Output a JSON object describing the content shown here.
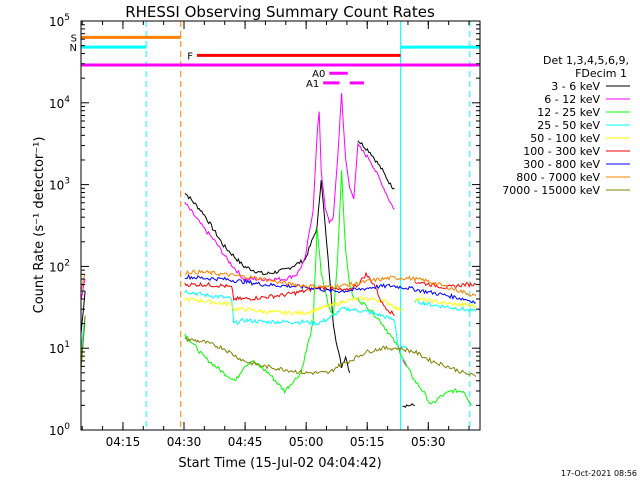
{
  "chart_data": {
    "type": "line",
    "title": "RHESSI Observing Summary Count Rates",
    "xlabel": "Start Time (15-Jul-02 04:04:42)",
    "ylabel": "Count Rate (s⁻¹ detector⁻¹)",
    "x_units": "minutes after 04:04:42",
    "x_range": [
      0,
      98
    ],
    "y_scale": "log",
    "y_range": [
      1,
      100000
    ],
    "y_ticks": [
      {
        "value": 1,
        "base": "10",
        "exp": "0"
      },
      {
        "value": 10,
        "base": "10",
        "exp": "1"
      },
      {
        "value": 100,
        "base": "10",
        "exp": "2"
      },
      {
        "value": 1000,
        "base": "10",
        "exp": "3"
      },
      {
        "value": 10000,
        "base": "10",
        "exp": "4"
      },
      {
        "value": 100000,
        "base": "10",
        "exp": "5"
      }
    ],
    "x_ticks": [
      {
        "t": 10.3,
        "label": "04:15"
      },
      {
        "t": 25.3,
        "label": "04:30"
      },
      {
        "t": 40.3,
        "label": "04:45"
      },
      {
        "t": 55.3,
        "label": "05:00"
      },
      {
        "t": 70.3,
        "label": "05:15"
      },
      {
        "t": 85.3,
        "label": "05:30"
      }
    ],
    "legend_header": [
      "Det 1,3,4,5,6,9,",
      "FDecim 1"
    ],
    "legend_position": "right",
    "series": [
      {
        "name": "3 - 6 keV",
        "color": "#000000",
        "points": [
          [
            0,
            15
          ],
          [
            1,
            50
          ],
          [
            24,
            null
          ],
          [
            25.5,
            800
          ],
          [
            30,
            450
          ],
          [
            35,
            180
          ],
          [
            40,
            100
          ],
          [
            45,
            80
          ],
          [
            50,
            90
          ],
          [
            55,
            120
          ],
          [
            58,
            300
          ],
          [
            59,
            1200
          ],
          [
            60,
            300
          ],
          [
            61,
            80
          ],
          [
            62,
            20
          ],
          [
            63,
            10
          ],
          [
            64,
            6
          ],
          [
            65,
            8
          ],
          [
            66,
            5
          ],
          [
            67,
            null
          ],
          [
            68,
            3500
          ],
          [
            71,
            2500
          ],
          [
            74,
            1500
          ],
          [
            76,
            1000
          ],
          [
            77,
            900
          ],
          [
            77.5,
            null
          ],
          [
            79,
            2
          ],
          [
            82,
            2
          ],
          [
            82.5,
            null
          ]
        ]
      },
      {
        "name": "6 - 12 keV",
        "color": "#ff00ff",
        "points": [
          [
            0,
            40
          ],
          [
            1,
            70
          ],
          [
            24,
            null
          ],
          [
            25.5,
            600
          ],
          [
            30,
            300
          ],
          [
            33,
            200
          ],
          [
            36,
            120
          ],
          [
            40,
            70
          ],
          [
            45,
            70
          ],
          [
            50,
            70
          ],
          [
            53,
            80
          ],
          [
            55,
            120
          ],
          [
            57,
            500
          ],
          [
            58,
            4000
          ],
          [
            58.5,
            8000
          ],
          [
            59,
            1500
          ],
          [
            60,
            500
          ],
          [
            61,
            350
          ],
          [
            62,
            400
          ],
          [
            63,
            2000
          ],
          [
            64,
            13000
          ],
          [
            65,
            2000
          ],
          [
            66,
            900
          ],
          [
            67,
            700
          ],
          [
            68,
            3000
          ],
          [
            71,
            2000
          ],
          [
            74,
            1000
          ],
          [
            76,
            600
          ],
          [
            77,
            500
          ],
          [
            77.5,
            null
          ],
          [
            79,
            7
          ],
          [
            80,
            6
          ],
          [
            80.5,
            null
          ]
        ]
      },
      {
        "name": "12 - 25 keV",
        "color": "#00ff00",
        "points": [
          [
            0,
            8
          ],
          [
            1,
            20
          ],
          [
            24,
            null
          ],
          [
            25.5,
            15
          ],
          [
            30,
            8
          ],
          [
            35,
            5
          ],
          [
            38,
            4
          ],
          [
            40,
            6
          ],
          [
            42,
            7
          ],
          [
            46,
            5
          ],
          [
            50,
            3
          ],
          [
            54,
            5
          ],
          [
            57,
            20
          ],
          [
            58,
            300
          ],
          [
            59,
            80
          ],
          [
            60,
            50
          ],
          [
            61,
            30
          ],
          [
            62,
            25
          ],
          [
            63,
            120
          ],
          [
            64,
            1500
          ],
          [
            65,
            150
          ],
          [
            66,
            60
          ],
          [
            67,
            40
          ],
          [
            68,
            40
          ],
          [
            71,
            30
          ],
          [
            74,
            20
          ],
          [
            77,
            12
          ],
          [
            78,
            10
          ],
          [
            80,
            6
          ],
          [
            82,
            4
          ],
          [
            84,
            3
          ],
          [
            86,
            2
          ],
          [
            88,
            2.5
          ],
          [
            91,
            3
          ],
          [
            94,
            3
          ],
          [
            96,
            2
          ]
        ]
      },
      {
        "name": "25 - 50 keV",
        "color": "#00ffff",
        "points": [
          [
            0,
            10
          ],
          [
            1,
            25
          ],
          [
            24,
            null
          ],
          [
            25.5,
            50
          ],
          [
            30,
            45
          ],
          [
            35,
            42
          ],
          [
            37,
            40
          ],
          [
            37.5,
            20
          ],
          [
            40,
            22
          ],
          [
            45,
            21
          ],
          [
            50,
            21
          ],
          [
            55,
            21
          ],
          [
            58,
            20
          ],
          [
            60,
            22
          ],
          [
            62,
            25
          ],
          [
            64,
            30
          ],
          [
            66,
            30
          ],
          [
            70,
            28
          ],
          [
            74,
            25
          ],
          [
            77,
            22
          ],
          [
            78,
            10
          ],
          [
            80,
            10
          ],
          [
            81,
            null
          ],
          [
            82,
            38
          ],
          [
            86,
            34
          ],
          [
            90,
            32
          ],
          [
            94,
            30
          ],
          [
            97,
            28
          ]
        ]
      },
      {
        "name": "50 - 100 keV",
        "color": "#ffff00",
        "points": [
          [
            25.5,
            40
          ],
          [
            30,
            38
          ],
          [
            35,
            35
          ],
          [
            37,
            35
          ],
          [
            37.5,
            30
          ],
          [
            40,
            30
          ],
          [
            45,
            28
          ],
          [
            50,
            27
          ],
          [
            55,
            27
          ],
          [
            58,
            30
          ],
          [
            60,
            32
          ],
          [
            63,
            35
          ],
          [
            65,
            38
          ],
          [
            68,
            40
          ],
          [
            71,
            40
          ],
          [
            74,
            38
          ],
          [
            76,
            35
          ],
          [
            77,
            32
          ],
          [
            78,
            30
          ],
          [
            79,
            30
          ],
          [
            81,
            null
          ],
          [
            82,
            40
          ],
          [
            86,
            38
          ],
          [
            90,
            35
          ],
          [
            94,
            34
          ],
          [
            97,
            33
          ]
        ]
      },
      {
        "name": "100 - 300 keV",
        "color": "#ff0000",
        "points": [
          [
            25.5,
            60
          ],
          [
            30,
            60
          ],
          [
            35,
            58
          ],
          [
            37,
            55
          ],
          [
            37.5,
            40
          ],
          [
            40,
            40
          ],
          [
            45,
            42
          ],
          [
            50,
            45
          ],
          [
            55,
            50
          ],
          [
            58,
            55
          ],
          [
            60,
            55
          ],
          [
            63,
            52
          ],
          [
            65,
            50
          ],
          [
            68,
            60
          ],
          [
            70,
            80
          ],
          [
            72,
            60
          ],
          [
            74,
            35
          ],
          [
            76,
            28
          ],
          [
            77,
            25
          ],
          [
            77.5,
            null
          ],
          [
            80,
            30
          ],
          [
            81,
            null
          ],
          [
            82,
            65
          ],
          [
            86,
            60
          ],
          [
            90,
            55
          ],
          [
            94,
            60
          ],
          [
            97,
            60
          ]
        ]
      },
      {
        "name": "300 - 800 keV",
        "color": "#0000ff",
        "points": [
          [
            25.5,
            75
          ],
          [
            30,
            72
          ],
          [
            35,
            70
          ],
          [
            40,
            65
          ],
          [
            45,
            60
          ],
          [
            50,
            58
          ],
          [
            55,
            56
          ],
          [
            58,
            54
          ],
          [
            61,
            50
          ],
          [
            64,
            50
          ],
          [
            68,
            52
          ],
          [
            72,
            56
          ],
          [
            76,
            58
          ],
          [
            80,
            55
          ],
          [
            84,
            50
          ],
          [
            88,
            46
          ],
          [
            92,
            42
          ],
          [
            96,
            38
          ],
          [
            97,
            36
          ]
        ]
      },
      {
        "name": "800 - 7000 keV",
        "color": "#ff8000",
        "points": [
          [
            0,
            50
          ],
          [
            1,
            80
          ],
          [
            24,
            null
          ],
          [
            25.5,
            85
          ],
          [
            30,
            85
          ],
          [
            35,
            80
          ],
          [
            40,
            75
          ],
          [
            45,
            70
          ],
          [
            50,
            62
          ],
          [
            55,
            58
          ],
          [
            60,
            56
          ],
          [
            64,
            58
          ],
          [
            68,
            62
          ],
          [
            72,
            68
          ],
          [
            76,
            72
          ],
          [
            80,
            72
          ],
          [
            84,
            68
          ],
          [
            88,
            60
          ],
          [
            92,
            52
          ],
          [
            96,
            45
          ],
          [
            97,
            44
          ]
        ]
      },
      {
        "name": "7000 - 15000 keV",
        "color": "#808000",
        "points": [
          [
            0,
            5
          ],
          [
            1,
            25
          ],
          [
            24,
            null
          ],
          [
            25.5,
            13
          ],
          [
            30,
            12
          ],
          [
            35,
            10
          ],
          [
            38,
            8
          ],
          [
            40,
            7
          ],
          [
            45,
            6
          ],
          [
            50,
            5.5
          ],
          [
            55,
            5
          ],
          [
            58,
            5
          ],
          [
            61,
            5
          ],
          [
            63,
            6
          ],
          [
            66,
            7
          ],
          [
            70,
            9
          ],
          [
            74,
            10
          ],
          [
            78,
            10
          ],
          [
            82,
            9
          ],
          [
            86,
            7
          ],
          [
            90,
            6
          ],
          [
            94,
            5
          ],
          [
            97,
            4.5
          ]
        ]
      }
    ],
    "markers": [
      {
        "label": "S",
        "color": "#ff8000",
        "t_start": 0,
        "t_end": 24.5,
        "y_value": 63000
      },
      {
        "label": "N",
        "color": "#00ffff",
        "t_start": 0,
        "t_end": 16,
        "y_value": 48000
      },
      {
        "label": "",
        "color": "#00ffff",
        "t_start": 78.5,
        "t_end": 98,
        "y_value": 48000
      },
      {
        "label": "F",
        "color": "#ff0000",
        "t_start": 28.5,
        "t_end": 78.5,
        "y_value": 38000
      },
      {
        "label": "",
        "color": "#ff00ff",
        "t_start": 0,
        "t_end": 98,
        "y_value": 29000
      },
      {
        "label": "A0",
        "color": "#ff00ff",
        "t_start": 61,
        "t_end": 65.5,
        "y_value": 23000
      },
      {
        "label": "A1",
        "color": "#ff00ff",
        "t_start": 59.5,
        "t_end": 63.5,
        "y_value": 17500
      },
      {
        "label": "",
        "color": "#ff00ff",
        "t_start": 66,
        "t_end": 69.5,
        "y_value": 17500
      }
    ],
    "vertical_lines": [
      {
        "t": 16,
        "color": "#00ffff",
        "style": "dashed"
      },
      {
        "t": 24.5,
        "color": "#ff8000",
        "style": "dashed"
      },
      {
        "t": 78.5,
        "color": "#00ffff",
        "style": "solid"
      },
      {
        "t": 95.5,
        "color": "#00ffff",
        "style": "dashed"
      }
    ],
    "footer_text": "17-Oct-2021 08:56"
  }
}
